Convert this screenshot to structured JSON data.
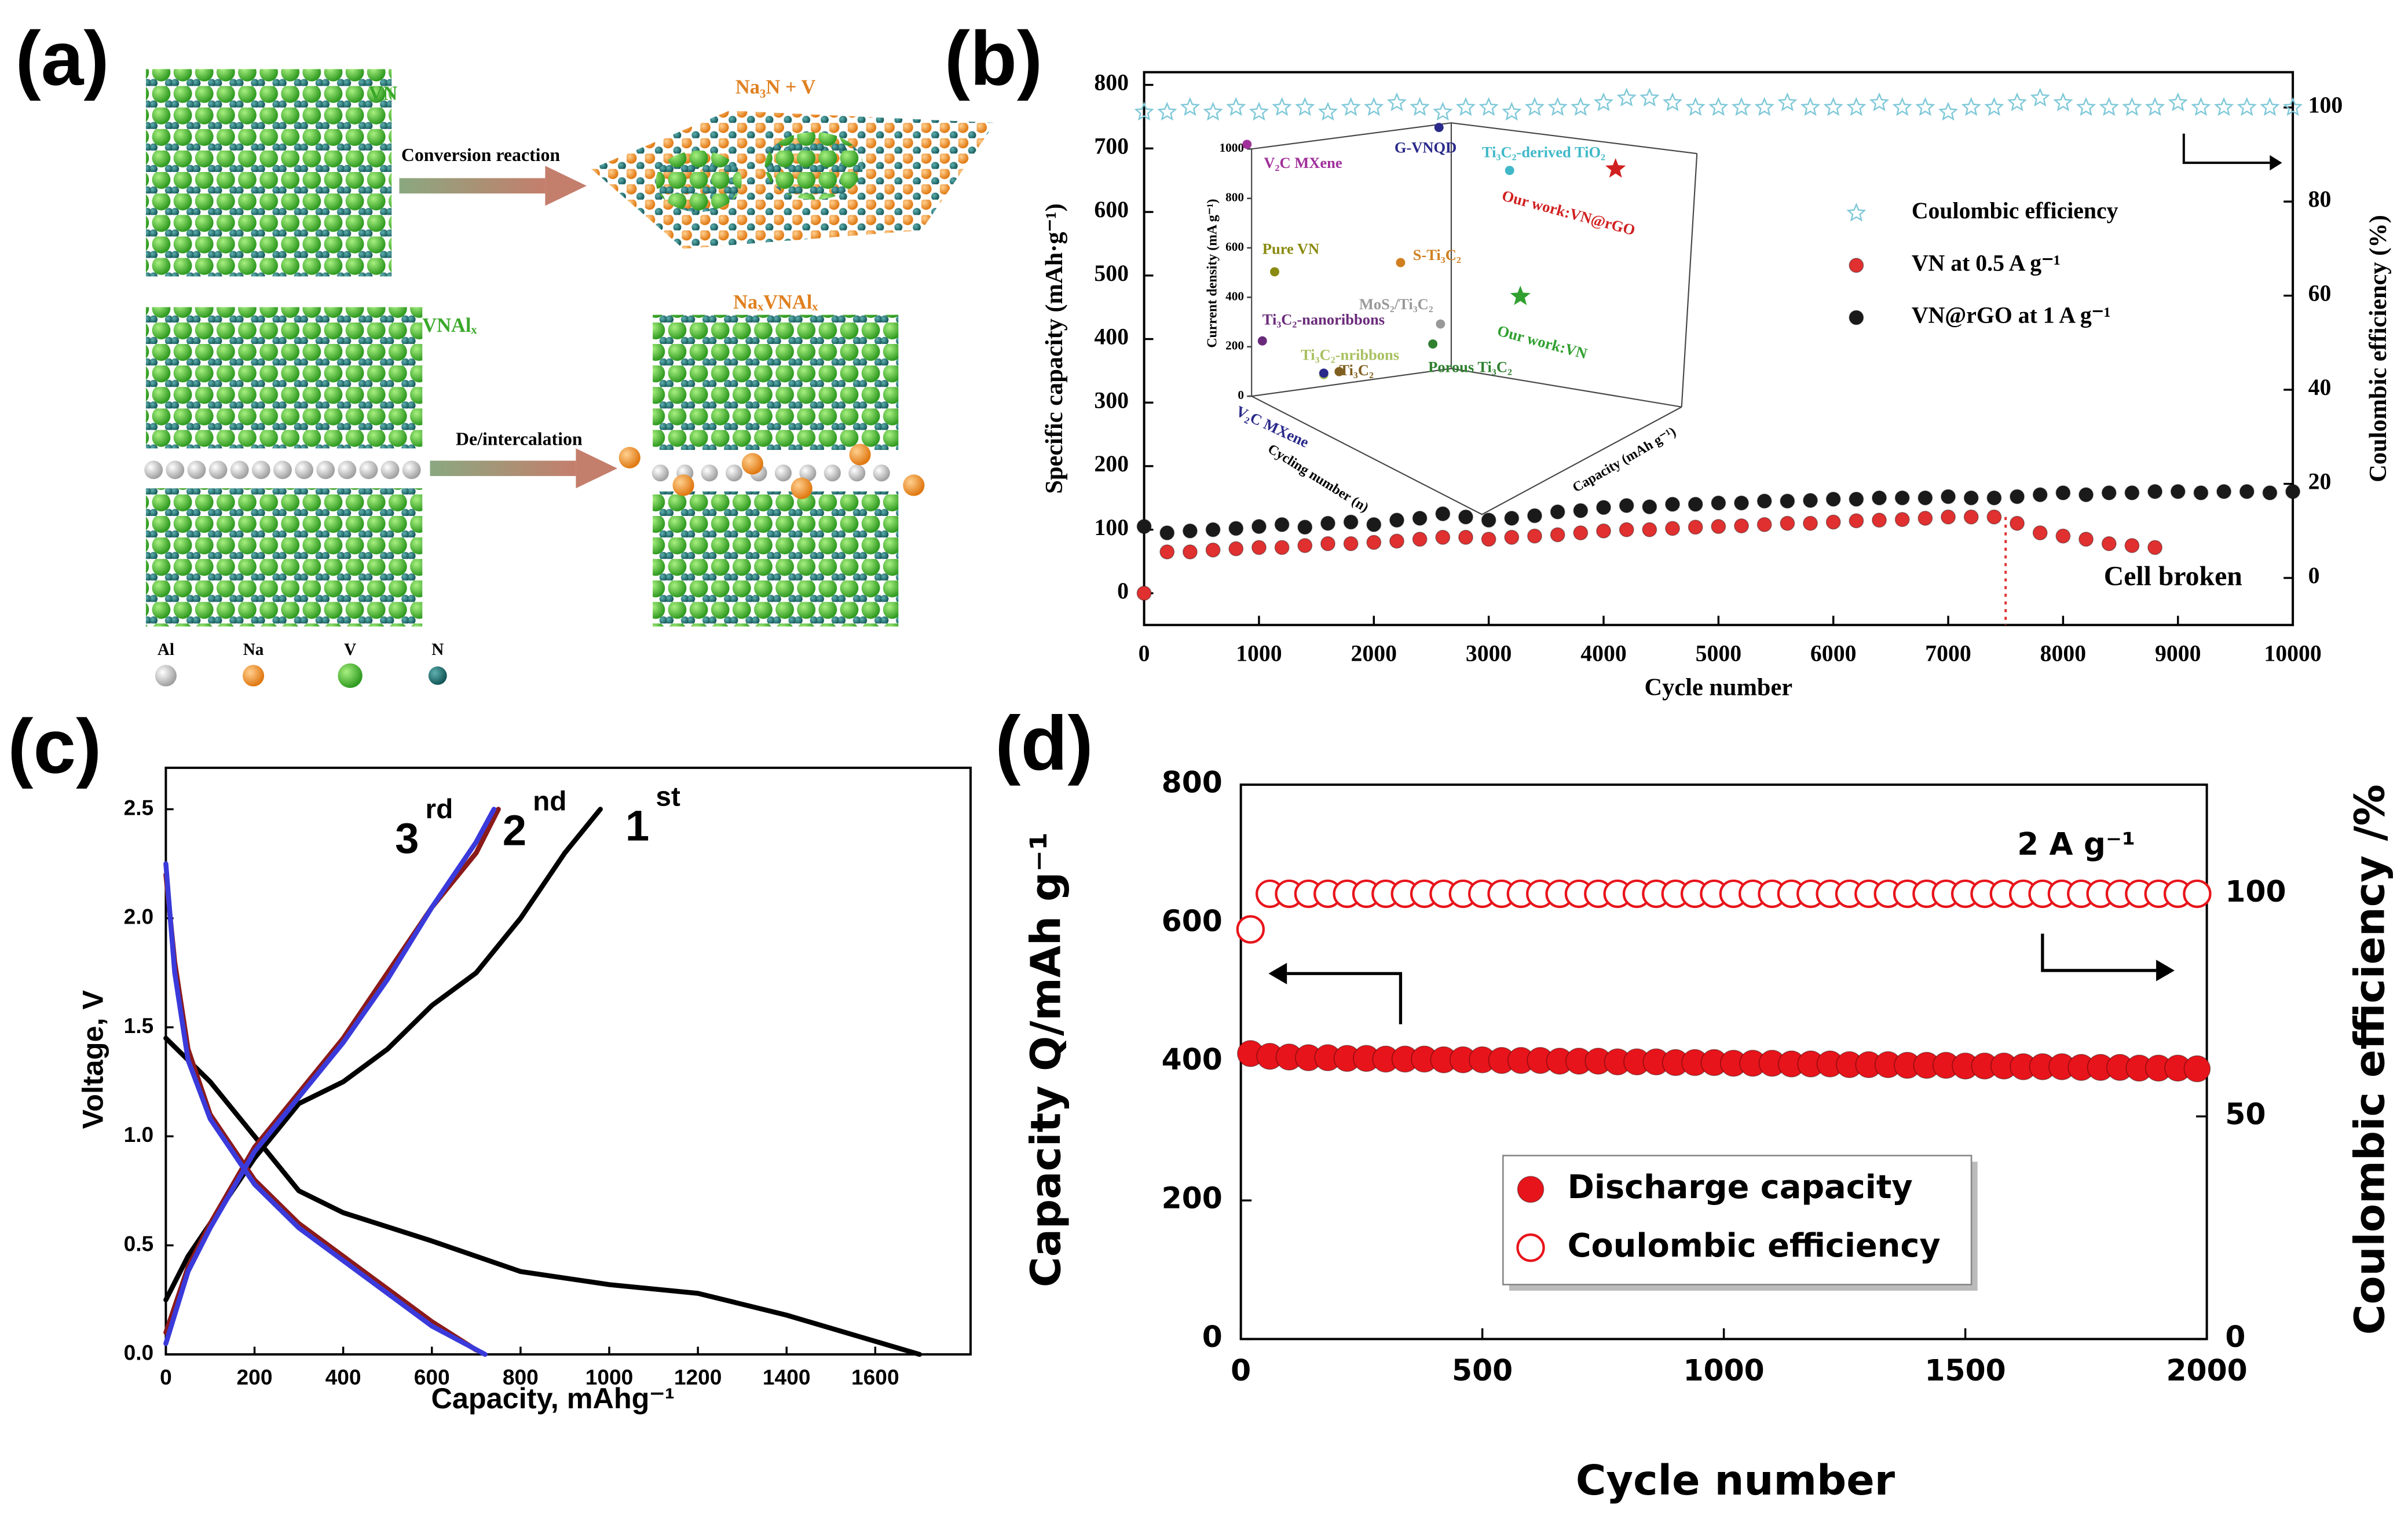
{
  "panel_a": {
    "panel": "(a)",
    "labels": {
      "vn": "VN",
      "conversion": "Conversion reaction",
      "product": "Na₃N + V",
      "vnal": "VNAlₓ",
      "intercalation": "De/intercalation",
      "intercalated": "NaₓVNAlₓ"
    },
    "legend": [
      "Al",
      "Na",
      "V",
      "N"
    ]
  },
  "chart_data": [
    {
      "type": "scatter",
      "panel": "(b)",
      "x_label": "Cycle number",
      "y_label": "Specific capacity (mAh·g⁻¹)",
      "y2_label": "Coulombic efficiency (%)",
      "xlim": [
        0,
        10000
      ],
      "xticks": [
        0,
        1000,
        2000,
        3000,
        4000,
        5000,
        6000,
        7000,
        8000,
        9000,
        10000
      ],
      "ylim": [
        -50,
        820
      ],
      "yticks": [
        0,
        100,
        200,
        300,
        400,
        500,
        600,
        700,
        800
      ],
      "y2lim": [
        -10,
        107.5
      ],
      "y2ticks": [
        0,
        20,
        40,
        60,
        80,
        100
      ],
      "legend": "center right",
      "annotations": [
        "Cell broken"
      ],
      "vline": 7500,
      "series": [
        {
          "name": "Coulombic efficiency",
          "color": "#7ec8d8",
          "marker": "star",
          "axis": "y2",
          "x": [
            0,
            200,
            400,
            600,
            800,
            1000,
            1200,
            1400,
            1600,
            1800,
            2000,
            2200,
            2400,
            2600,
            2800,
            3000,
            3200,
            3400,
            3600,
            3800,
            4000,
            4200,
            4400,
            4600,
            4800,
            5000,
            5200,
            5400,
            5600,
            5800,
            6000,
            6200,
            6400,
            6600,
            6800,
            7000,
            7200,
            7400,
            7600,
            7800,
            8000,
            8200,
            8400,
            8600,
            8800,
            9000,
            9200,
            9400,
            9600,
            9800,
            10000
          ],
          "values": [
            99,
            99,
            100,
            99,
            100,
            99,
            100,
            100,
            99,
            100,
            100,
            101,
            100,
            99,
            100,
            100,
            99,
            100,
            100,
            100,
            101,
            102,
            102,
            101,
            100,
            100,
            100,
            100,
            101,
            100,
            100,
            100,
            101,
            100,
            100,
            99,
            100,
            100,
            101,
            102,
            101,
            100,
            100,
            100,
            100,
            101,
            100,
            100,
            100,
            100,
            100
          ]
        },
        {
          "name": "VN at 0.5 A g⁻¹",
          "color": "#e03030",
          "marker": "circle",
          "x": [
            0,
            200,
            400,
            600,
            800,
            1000,
            1200,
            1400,
            1600,
            1800,
            2000,
            2200,
            2400,
            2600,
            2800,
            3000,
            3200,
            3400,
            3600,
            3800,
            4000,
            4200,
            4400,
            4600,
            4800,
            5000,
            5200,
            5400,
            5600,
            5800,
            6000,
            6200,
            6400,
            6600,
            6800,
            7000,
            7200,
            7400,
            7600,
            7800,
            8000,
            8200,
            8400,
            8600,
            8800
          ],
          "values": [
            0,
            65,
            65,
            68,
            70,
            72,
            72,
            75,
            78,
            78,
            80,
            82,
            85,
            88,
            88,
            85,
            88,
            90,
            92,
            95,
            98,
            100,
            100,
            102,
            104,
            105,
            106,
            108,
            110,
            110,
            112,
            114,
            115,
            116,
            118,
            120,
            120,
            120,
            110,
            95,
            90,
            85,
            78,
            75,
            72
          ]
        },
        {
          "name": "VN@rGO at 1 A g⁻¹",
          "color": "#1a1a1a",
          "marker": "circle",
          "x": [
            0,
            200,
            400,
            600,
            800,
            1000,
            1200,
            1400,
            1600,
            1800,
            2000,
            2200,
            2400,
            2600,
            2800,
            3000,
            3200,
            3400,
            3600,
            3800,
            4000,
            4200,
            4400,
            4600,
            4800,
            5000,
            5200,
            5400,
            5600,
            5800,
            6000,
            6200,
            6400,
            6600,
            6800,
            7000,
            7200,
            7400,
            7600,
            7800,
            8000,
            8200,
            8400,
            8600,
            8800,
            9000,
            9200,
            9400,
            9600,
            9800,
            10000
          ],
          "values": [
            105,
            95,
            98,
            100,
            102,
            105,
            108,
            104,
            110,
            112,
            108,
            115,
            118,
            125,
            120,
            115,
            118,
            122,
            128,
            130,
            135,
            138,
            136,
            140,
            140,
            142,
            142,
            145,
            145,
            146,
            148,
            148,
            150,
            150,
            150,
            152,
            150,
            150,
            152,
            155,
            158,
            155,
            158,
            158,
            160,
            160,
            158,
            160,
            160,
            158,
            160
          ]
        }
      ],
      "inset": {
        "zlim": [
          0,
          1000
        ],
        "zticks": [
          0,
          200,
          400,
          600,
          800,
          1000
        ],
        "axis_labels": [
          "Current density (mA g⁻¹)",
          "Cycling number (n)",
          "Capacity (mAh g⁻¹)"
        ],
        "points": [
          {
            "label": "V₂C MXene",
            "color": "#a0309a"
          },
          {
            "label": "G-VNQD",
            "color": "#2a2a8a"
          },
          {
            "label": "Ti₃C₂-derived TiO₂",
            "color": "#40b8c8"
          },
          {
            "label": "Our work:VN@rGO",
            "color": "#d02020"
          },
          {
            "label": "Pure VN",
            "color": "#8a8a10"
          },
          {
            "label": "S-Ti₃C₂",
            "color": "#d08020"
          },
          {
            "label": "MoS₂/Ti₃C₂",
            "color": "#999999"
          },
          {
            "label": "Our work:VN",
            "color": "#30a030"
          },
          {
            "label": "Ti₃C₂-nanoribbons",
            "color": "#6a2a7a"
          },
          {
            "label": "Ti₃C₂-nribbons",
            "color": "#a8c060"
          },
          {
            "label": "Ti₃C₂",
            "color": "#806020"
          },
          {
            "label": "Porous Ti₃C₂",
            "color": "#308030"
          },
          {
            "label": "V₂C MXene",
            "color": "#2a2a8a"
          }
        ]
      }
    },
    {
      "type": "line",
      "panel": "(c)",
      "x_label": "Capacity, mAhg⁻¹",
      "y_label": "Voltage, V",
      "xlim": [
        0,
        1815
      ],
      "xticks": [
        0,
        200,
        400,
        600,
        800,
        1000,
        1200,
        1400,
        1600
      ],
      "ylim": [
        0,
        2.69
      ],
      "yticks": [
        {
          "value": 0,
          "label": "0.0"
        },
        0.5,
        {
          "value": 1,
          "label": "1.0"
        },
        1.5,
        {
          "value": 2,
          "label": "2.0"
        },
        2.5
      ],
      "annotations": [
        {
          "base": "3",
          "sup": "rd"
        },
        {
          "base": "2",
          "sup": "nd"
        },
        {
          "base": "1",
          "sup": "st"
        }
      ],
      "series": [
        {
          "color": "#000000",
          "x": [
            0,
            50,
            100,
            200,
            300,
            400,
            600,
            800,
            1000,
            1200,
            1400,
            1600,
            1700,
            null,
            0,
            50,
            100,
            200,
            300,
            400,
            500,
            600,
            700,
            800,
            900,
            980
          ],
          "values": [
            1.45,
            1.35,
            1.25,
            1.0,
            0.75,
            0.65,
            0.52,
            0.38,
            0.32,
            0.28,
            0.18,
            0.06,
            0.0,
            null,
            0.25,
            0.45,
            0.6,
            0.9,
            1.15,
            1.25,
            1.4,
            1.6,
            1.75,
            2.0,
            2.3,
            2.5
          ]
        },
        {
          "color": "#8b1a1a",
          "x": [
            0,
            20,
            50,
            100,
            200,
            300,
            400,
            500,
            600,
            700,
            null,
            0,
            50,
            100,
            200,
            300,
            400,
            500,
            600,
            700,
            750
          ],
          "values": [
            2.2,
            1.8,
            1.4,
            1.1,
            0.8,
            0.6,
            0.45,
            0.3,
            0.15,
            0.02,
            null,
            0.1,
            0.4,
            0.6,
            0.95,
            1.2,
            1.45,
            1.75,
            2.05,
            2.3,
            2.5
          ]
        },
        {
          "color": "#3a3adb",
          "x": [
            0,
            20,
            50,
            100,
            200,
            300,
            400,
            500,
            600,
            720,
            null,
            0,
            50,
            100,
            200,
            300,
            400,
            500,
            600,
            700,
            740
          ],
          "values": [
            2.25,
            1.75,
            1.35,
            1.08,
            0.78,
            0.58,
            0.43,
            0.28,
            0.13,
            0.0,
            null,
            0.05,
            0.38,
            0.58,
            0.93,
            1.18,
            1.43,
            1.72,
            2.05,
            2.35,
            2.5
          ]
        }
      ]
    },
    {
      "type": "scatter",
      "panel": "(d)",
      "x_label": "Cycle number",
      "y_label": "Capacity Q/mAh g⁻¹",
      "y2_label": "Coulombic efficiency /%",
      "xlim": [
        0,
        2000
      ],
      "xticks": [
        0,
        500,
        1000,
        1500,
        2000
      ],
      "ylim": [
        0,
        800
      ],
      "yticks": [
        0,
        200,
        400,
        600,
        800
      ],
      "y2lim": [
        0,
        124.5
      ],
      "y2ticks": [
        0,
        50,
        100
      ],
      "legend": "lower center",
      "legend_frame": true,
      "annotations": [
        "2 A g⁻¹"
      ],
      "x": [
        20,
        60,
        100,
        140,
        180,
        220,
        260,
        300,
        340,
        380,
        420,
        460,
        500,
        540,
        580,
        620,
        660,
        700,
        740,
        780,
        820,
        860,
        900,
        940,
        980,
        1020,
        1060,
        1100,
        1140,
        1180,
        1220,
        1260,
        1300,
        1340,
        1380,
        1420,
        1460,
        1500,
        1540,
        1580,
        1620,
        1660,
        1700,
        1740,
        1780,
        1820,
        1860,
        1900,
        1940,
        1980
      ],
      "series": [
        {
          "name": "Discharge capacity",
          "color": "#e8141b",
          "marker": "circle",
          "values": [
            412,
            408,
            407,
            406,
            406,
            405,
            405,
            404,
            404,
            404,
            403,
            403,
            403,
            402,
            402,
            402,
            401,
            401,
            401,
            400,
            400,
            400,
            399,
            399,
            399,
            398,
            398,
            398,
            397,
            397,
            397,
            396,
            396,
            396,
            395,
            395,
            395,
            394,
            394,
            394,
            393,
            393,
            393,
            392,
            392,
            392,
            391,
            391,
            391,
            390
          ]
        },
        {
          "name": "Coulombic efficiency",
          "color": "#e8141b",
          "marker": "open-circle",
          "axis": "y2",
          "values": [
            92,
            100,
            100,
            100,
            100,
            100,
            100,
            100,
            100,
            100,
            100,
            100,
            100,
            100,
            100,
            100,
            100,
            100,
            100,
            100,
            100,
            100,
            100,
            100,
            100,
            100,
            100,
            100,
            100,
            100,
            100,
            100,
            100,
            100,
            100,
            100,
            100,
            100,
            100,
            100,
            100,
            100,
            100,
            100,
            100,
            100,
            100,
            100,
            100,
            100
          ]
        }
      ]
    }
  ]
}
